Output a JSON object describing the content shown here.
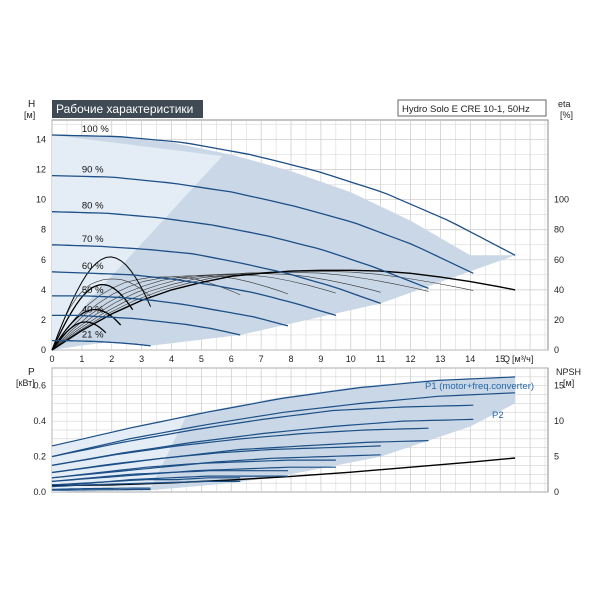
{
  "title": "Рабочие характеристики",
  "model": "Hydro Solo E CRE 10-1, 50Hz",
  "colors": {
    "curve": "#1c4f86",
    "envelope": "#c9d7e6",
    "envelope_light": "#e4edf6",
    "black": "#000000",
    "grid": "#c8c8c8",
    "title_bg": "#3f4a54",
    "p1_label": "#2566a8"
  },
  "chart_data": [
    {
      "type": "line",
      "name": "head",
      "xlabel": "Q [м³/ч]",
      "x_unit_symbol": "Q",
      "x_unit": "[м³/ч]",
      "ylabel": "H",
      "ylabel_unit": "[м]",
      "y2label": "eta",
      "y2label_unit": "[%]",
      "xlim": [
        0,
        16.6
      ],
      "ylim": [
        0,
        15.3
      ],
      "y2lim": [
        0,
        153
      ],
      "x_ticks": [
        "0",
        "1",
        "2",
        "3",
        "4",
        "5",
        "6",
        "7",
        "8",
        "9",
        "10",
        "11",
        "12",
        "13",
        "14",
        "15"
      ],
      "y_ticks": [
        "0",
        "2",
        "4",
        "6",
        "8",
        "10",
        "12",
        "14"
      ],
      "y2_ticks": [
        "0",
        "20",
        "40",
        "60",
        "80",
        "100"
      ],
      "grid": true,
      "series": [
        {
          "name": "100 %",
          "qmax": 15.5,
          "h": [
            14.3,
            14.2,
            13.8,
            13.0,
            11.9,
            10.5,
            8.6,
            6.3
          ]
        },
        {
          "name": "90 %",
          "qmax": 14.1,
          "h": [
            11.6,
            11.5,
            11.1,
            10.5,
            9.6,
            8.5,
            7.0,
            5.1
          ]
        },
        {
          "name": "80 %",
          "qmax": 12.6,
          "h": [
            9.2,
            9.1,
            8.8,
            8.3,
            7.6,
            6.7,
            5.5,
            4.1
          ]
        },
        {
          "name": "70 %",
          "qmax": 11.0,
          "h": [
            7.0,
            6.9,
            6.7,
            6.4,
            5.8,
            5.1,
            4.2,
            3.1
          ]
        },
        {
          "name": "60 %",
          "qmax": 9.5,
          "h": [
            5.2,
            5.1,
            5.0,
            4.7,
            4.3,
            3.8,
            3.1,
            2.3
          ]
        },
        {
          "name": "50 %",
          "qmax": 7.9,
          "h": [
            3.6,
            3.6,
            3.5,
            3.3,
            3.0,
            2.6,
            2.2,
            1.6
          ]
        },
        {
          "name": "40 %",
          "qmax": 6.3,
          "h": [
            2.3,
            2.3,
            2.2,
            2.1,
            1.9,
            1.7,
            1.4,
            1.0
          ]
        },
        {
          "name": "21 %",
          "qmax": 3.3,
          "h": [
            0.63,
            0.62,
            0.6,
            0.57,
            0.52,
            0.46,
            0.38,
            0.28
          ]
        }
      ],
      "efficiency": {
        "name": "eta",
        "q": [
          0,
          1,
          2,
          3,
          4,
          5,
          6,
          7,
          8,
          9,
          10,
          11,
          12,
          13,
          14,
          15,
          15.5
        ],
        "eta": [
          0,
          13,
          24,
          33,
          40,
          45,
          49,
          51,
          52.5,
          53,
          53,
          52.5,
          51,
          48.5,
          45.5,
          42,
          40
        ]
      },
      "envelope": {
        "upper_q": [
          0,
          2,
          4,
          6,
          8,
          10,
          12,
          14,
          15.5
        ],
        "upper_h": [
          14.3,
          14.2,
          13.8,
          13.0,
          11.9,
          10.5,
          8.6,
          6.3,
          6.3
        ],
        "lower_q": [
          0,
          1,
          2,
          3.3,
          6.3,
          11.0,
          15.5
        ],
        "lower_h": [
          0,
          0.3,
          0.55,
          0.28,
          1.0,
          3.1,
          6.3
        ]
      }
    },
    {
      "type": "line",
      "name": "power",
      "ylabel": "P",
      "ylabel_unit": "[кВт]",
      "y2label": "NPSH",
      "y2label_unit": "[м]",
      "xlim": [
        0,
        16.6
      ],
      "ylim": [
        0,
        0.7
      ],
      "y2lim": [
        0,
        17.5
      ],
      "y_ticks": [
        "0.0",
        "0.2",
        "0.4",
        "0.6"
      ],
      "y2_ticks": [
        "0",
        "5",
        "10",
        "15"
      ],
      "grid": true,
      "p1_label": "P1 (motor+freq.converter)",
      "p2_label": "P2",
      "series": [
        {
          "name": "100 % P1",
          "qmax": 15.5,
          "p": [
            0.26,
            0.36,
            0.45,
            0.53,
            0.59,
            0.63,
            0.65
          ]
        },
        {
          "name": "100 % P2",
          "qmax": 15.5,
          "p": [
            0.2,
            0.3,
            0.38,
            0.45,
            0.5,
            0.54,
            0.56
          ]
        },
        {
          "name": "90 % P1",
          "qmax": 14.1,
          "p": [
            0.2,
            0.28,
            0.35,
            0.41,
            0.46,
            0.48,
            0.49
          ]
        },
        {
          "name": "90 % P2",
          "qmax": 14.1,
          "p": [
            0.15,
            0.22,
            0.28,
            0.33,
            0.37,
            0.4,
            0.41
          ]
        },
        {
          "name": "80 % P1",
          "qmax": 12.6,
          "p": [
            0.15,
            0.21,
            0.26,
            0.3,
            0.33,
            0.35,
            0.36
          ]
        },
        {
          "name": "80 % P2",
          "qmax": 12.6,
          "p": [
            0.11,
            0.16,
            0.2,
            0.24,
            0.26,
            0.28,
            0.29
          ]
        },
        {
          "name": "70 % P1",
          "qmax": 11.0,
          "p": [
            0.11,
            0.15,
            0.19,
            0.22,
            0.24,
            0.25,
            0.26
          ]
        },
        {
          "name": "70 % P2",
          "qmax": 11.0,
          "p": [
            0.08,
            0.11,
            0.14,
            0.17,
            0.19,
            0.2,
            0.21
          ]
        },
        {
          "name": "60 % P1",
          "qmax": 9.5,
          "p": [
            0.08,
            0.11,
            0.14,
            0.16,
            0.17,
            0.18,
            0.18
          ]
        },
        {
          "name": "60 % P2",
          "qmax": 9.5,
          "p": [
            0.06,
            0.08,
            0.1,
            0.12,
            0.13,
            0.14,
            0.14
          ]
        },
        {
          "name": "50 % P1",
          "qmax": 7.9,
          "p": [
            0.06,
            0.08,
            0.1,
            0.11,
            0.12,
            0.12,
            0.12
          ]
        },
        {
          "name": "50 % P2",
          "qmax": 7.9,
          "p": [
            0.04,
            0.05,
            0.07,
            0.08,
            0.09,
            0.09,
            0.09
          ]
        },
        {
          "name": "40 % P1",
          "qmax": 6.3,
          "p": [
            0.04,
            0.05,
            0.06,
            0.07,
            0.07,
            0.08,
            0.08
          ]
        },
        {
          "name": "40 % P2",
          "qmax": 6.3,
          "p": [
            0.03,
            0.04,
            0.045,
            0.05,
            0.055,
            0.06,
            0.06
          ]
        },
        {
          "name": "21 % P1",
          "qmax": 3.3,
          "p": [
            0.015,
            0.017,
            0.019,
            0.02,
            0.021,
            0.022,
            0.022
          ]
        },
        {
          "name": "21 % P2",
          "qmax": 3.3,
          "p": [
            0.01,
            0.011,
            0.012,
            0.013,
            0.013,
            0.014,
            0.014
          ]
        }
      ],
      "npsh": {
        "name": "NPSH",
        "q": [
          0,
          2,
          4,
          6,
          8,
          10,
          12,
          14,
          15.5
        ],
        "npsh": [
          0.9,
          1.0,
          1.3,
          1.7,
          2.2,
          2.8,
          3.5,
          4.2,
          4.8
        ]
      },
      "envelope": {
        "upper_q": [
          0,
          2.5,
          5,
          7.5,
          10,
          12.5,
          15.5
        ],
        "upper_p": [
          0.26,
          0.36,
          0.45,
          0.53,
          0.59,
          0.63,
          0.65
        ],
        "lower_q": [
          15.5,
          14,
          11,
          8,
          6,
          3.3,
          0
        ],
        "lower_p": [
          0.5,
          0.37,
          0.2,
          0.1,
          0.05,
          0.01,
          0.0
        ]
      }
    }
  ]
}
